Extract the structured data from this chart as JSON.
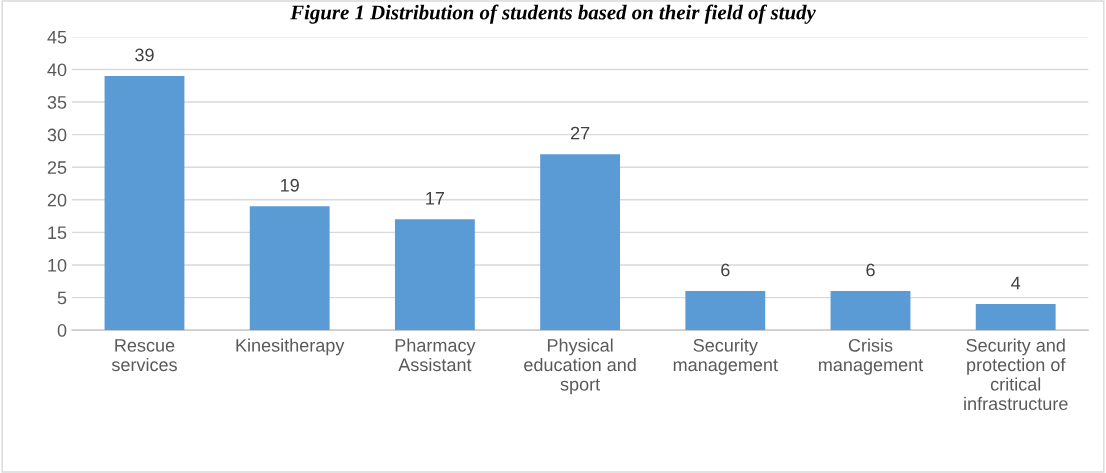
{
  "chart_data": {
    "type": "bar",
    "title": "Figure 1 Distribution of students based on their field of study",
    "categories": [
      "Rescue services",
      "Kinesitherapy",
      "Pharmacy Assistant",
      "Physical education and sport",
      "Security management",
      "Crisis management",
      "Security and protection of critical infrastructure"
    ],
    "values": [
      39,
      19,
      17,
      27,
      6,
      6,
      4
    ],
    "color": "#5b9bd5",
    "data_labels": true,
    "ylim": [
      0,
      45
    ],
    "yticks": [
      0,
      5,
      10,
      15,
      20,
      25,
      30,
      35,
      40,
      45
    ],
    "grid": "y",
    "legend": false
  }
}
